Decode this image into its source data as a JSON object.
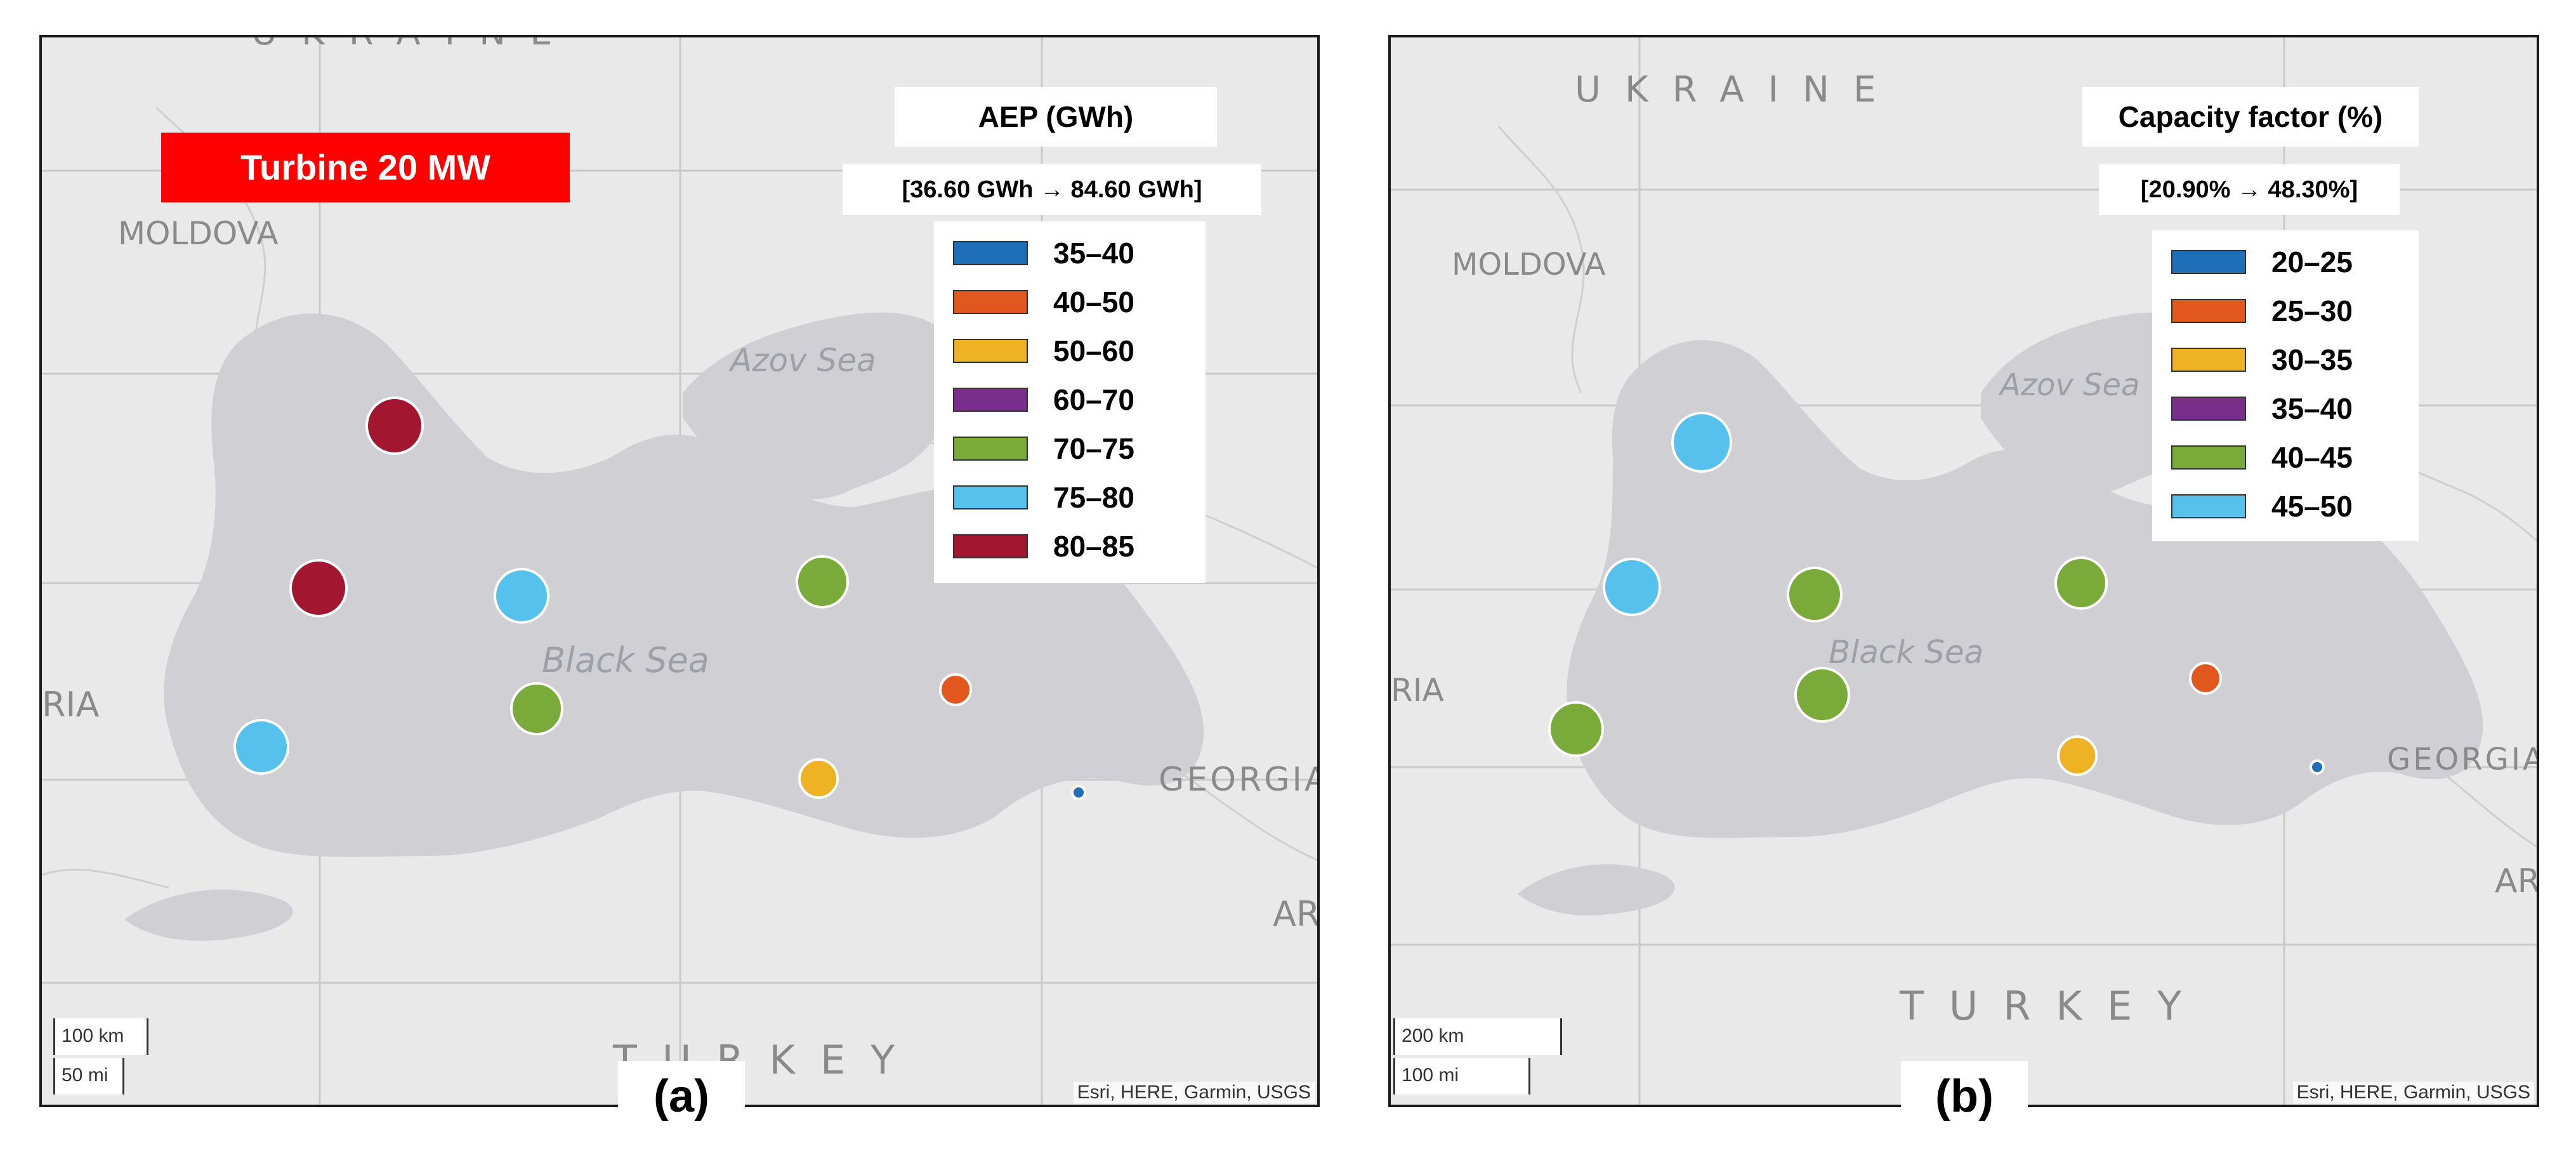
{
  "panels": [
    {
      "label": "(a)",
      "badge": "Turbine 20 MW",
      "legend": {
        "title": "AEP (GWh)",
        "range": "[36.60 GWh → 84.60 GWh]",
        "items": [
          {
            "label": "35–40",
            "color": "#1f6fb8"
          },
          {
            "label": "40–50",
            "color": "#e2571e"
          },
          {
            "label": "50–60",
            "color": "#efb224"
          },
          {
            "label": "60–70",
            "color": "#7a2e8c"
          },
          {
            "label": "70–75",
            "color": "#7aab3a"
          },
          {
            "label": "75–80",
            "color": "#56c1ec"
          },
          {
            "label": "80–85",
            "color": "#a3162f"
          }
        ]
      },
      "places": {
        "ukraine": "UKRAINE",
        "moldova": "MOLDOVA",
        "azov": "Azov Sea",
        "black_sea": "Black Sea",
        "ria": "RIA",
        "georgia": "GEORGIA",
        "turkey": "TURKEY",
        "ar": "AR"
      },
      "scale": {
        "km": "100 km",
        "mi": "50 mi"
      },
      "attribution": "Esri, HERE, Garmin, USGS",
      "points": [
        {
          "class": "80–85",
          "color": "#a3162f"
        },
        {
          "class": "80–85",
          "color": "#a3162f"
        },
        {
          "class": "75–80",
          "color": "#56c1ec"
        },
        {
          "class": "75–80",
          "color": "#56c1ec"
        },
        {
          "class": "70–75",
          "color": "#7aab3a"
        },
        {
          "class": "70–75",
          "color": "#7aab3a"
        },
        {
          "class": "40–50",
          "color": "#e2571e"
        },
        {
          "class": "50–60",
          "color": "#efb224"
        },
        {
          "class": "35–40",
          "color": "#1f6fb8"
        }
      ]
    },
    {
      "label": "(b)",
      "legend": {
        "title": "Capacity factor (%)",
        "range": "[20.90% → 48.30%]",
        "items": [
          {
            "label": "20–25",
            "color": "#1f6fb8"
          },
          {
            "label": "25–30",
            "color": "#e2571e"
          },
          {
            "label": "30–35",
            "color": "#efb224"
          },
          {
            "label": "35–40",
            "color": "#7a2e8c"
          },
          {
            "label": "40–45",
            "color": "#7aab3a"
          },
          {
            "label": "45–50",
            "color": "#56c1ec"
          }
        ]
      },
      "places": {
        "ukraine": "UKRAINE",
        "moldova": "MOLDOVA",
        "azov": "Azov Sea",
        "black_sea": "Black Sea",
        "ria": "RIA",
        "georgia": "GEORGIA",
        "turkey": "TURKEY",
        "ar": "AR"
      },
      "scale": {
        "km": "200 km",
        "mi": "100 mi"
      },
      "attribution": "Esri, HERE, Garmin, USGS",
      "points": [
        {
          "class": "45–50",
          "color": "#56c1ec"
        },
        {
          "class": "45–50",
          "color": "#56c1ec"
        },
        {
          "class": "40–45",
          "color": "#7aab3a"
        },
        {
          "class": "40–45",
          "color": "#7aab3a"
        },
        {
          "class": "40–45",
          "color": "#7aab3a"
        },
        {
          "class": "40–45",
          "color": "#7aab3a"
        },
        {
          "class": "25–30",
          "color": "#e2571e"
        },
        {
          "class": "30–35",
          "color": "#efb224"
        },
        {
          "class": "20–25",
          "color": "#1f6fb8"
        }
      ]
    }
  ]
}
